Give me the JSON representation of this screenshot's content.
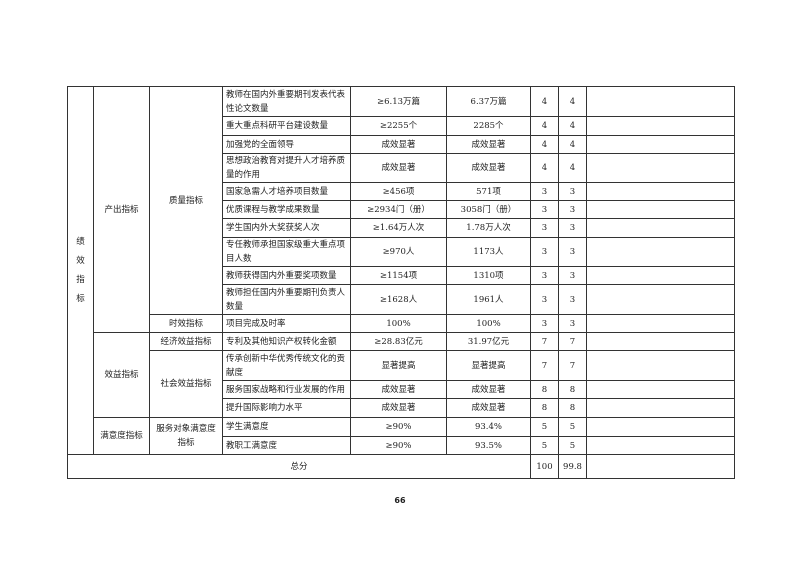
{
  "level1": "绩效指标",
  "level2": [
    "产出指标",
    "效益指标",
    "满意度指标"
  ],
  "level3": [
    "质量指标",
    "时效指标",
    "经济效益指标",
    "社会效益指标",
    "服务对象满意度指标"
  ],
  "rows": [
    {
      "indicator": "教师在国内外重要期刊发表代表性论文数量",
      "target": "≥6.13万篇",
      "actual": "6.37万篇",
      "weight": "4",
      "score": "4",
      "note": ""
    },
    {
      "indicator": "重大重点科研平台建设数量",
      "target": "≥2255个",
      "actual": "2285个",
      "weight": "4",
      "score": "4",
      "note": ""
    },
    {
      "indicator": "加强党的全面领导",
      "target": "成效显著",
      "actual": "成效显著",
      "weight": "4",
      "score": "4",
      "note": ""
    },
    {
      "indicator": "思想政治教育对提升人才培养质量的作用",
      "target": "成效显著",
      "actual": "成效显著",
      "weight": "4",
      "score": "4",
      "note": ""
    },
    {
      "indicator": "国家急需人才培养项目数量",
      "target": "≥456项",
      "actual": "571项",
      "weight": "3",
      "score": "3",
      "note": ""
    },
    {
      "indicator": "优质课程与教学成果数量",
      "target": "≥2934门（册）",
      "actual": "3058门（册）",
      "weight": "3",
      "score": "3",
      "note": ""
    },
    {
      "indicator": "学生国内外大奖获奖人次",
      "target": "≥1.64万人次",
      "actual": "1.78万人次",
      "weight": "3",
      "score": "3",
      "note": ""
    },
    {
      "indicator": "专任教师承担国家级重大重点项目人数",
      "target": "≥970人",
      "actual": "1173人",
      "weight": "3",
      "score": "3",
      "note": ""
    },
    {
      "indicator": "教师获得国内外重要奖项数量",
      "target": "≥1154项",
      "actual": "1310项",
      "weight": "3",
      "score": "3",
      "note": ""
    },
    {
      "indicator": "教师担任国内外重要期刊负责人数量",
      "target": "≥1628人",
      "actual": "1961人",
      "weight": "3",
      "score": "3",
      "note": ""
    },
    {
      "indicator": "项目完成及时率",
      "target": "100%",
      "actual": "100%",
      "weight": "3",
      "score": "3",
      "note": ""
    },
    {
      "indicator": "专利及其他知识产权转化金额",
      "target": "≥28.83亿元",
      "actual": "31.97亿元",
      "weight": "7",
      "score": "7",
      "note": ""
    },
    {
      "indicator": "传承创新中华优秀传统文化的贡献度",
      "target": "显著提高",
      "actual": "显著提高",
      "weight": "7",
      "score": "7",
      "note": ""
    },
    {
      "indicator": "服务国家战略和行业发展的作用",
      "target": "成效显著",
      "actual": "成效显著",
      "weight": "8",
      "score": "8",
      "note": ""
    },
    {
      "indicator": "提升国际影响力水平",
      "target": "成效显著",
      "actual": "成效显著",
      "weight": "8",
      "score": "8",
      "note": ""
    },
    {
      "indicator": "学生满意度",
      "target": "≥90%",
      "actual": "93.4%",
      "weight": "5",
      "score": "5",
      "note": ""
    },
    {
      "indicator": "教职工满意度",
      "target": "≥90%",
      "actual": "93.5%",
      "weight": "5",
      "score": "5",
      "note": ""
    }
  ],
  "total": {
    "label": "总分",
    "weight": "100",
    "score": "99.8"
  },
  "page_number": "66"
}
